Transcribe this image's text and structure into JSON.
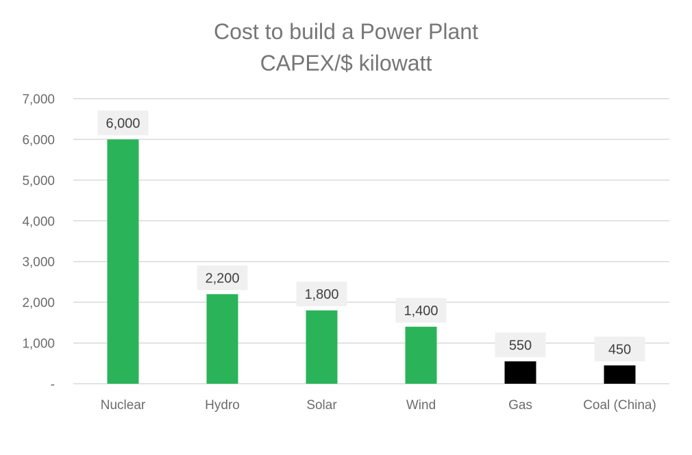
{
  "chart_data": {
    "type": "bar",
    "title": "Cost to build a Power Plant",
    "subtitle": "CAPEX/$ kilowatt",
    "xlabel": "",
    "ylabel": "",
    "categories": [
      "Nuclear",
      "Hydro",
      "Solar",
      "Wind",
      "Gas",
      "Coal (China)"
    ],
    "values": [
      6000,
      2200,
      1800,
      1400,
      550,
      450
    ],
    "data_labels": [
      "6,000",
      "2,200",
      "1,800",
      "1,400",
      "550",
      "450"
    ],
    "bar_colors": [
      "#2bb35a",
      "#2bb35a",
      "#2bb35a",
      "#2bb35a",
      "#000000",
      "#000000"
    ],
    "ylim": [
      0,
      7000
    ],
    "yticks": [
      0,
      1000,
      2000,
      3000,
      4000,
      5000,
      6000,
      7000
    ],
    "ytick_labels": [
      "-",
      "1,000",
      "2,000",
      "3,000",
      "4,000",
      "5,000",
      "6,000",
      "7,000"
    ],
    "grid": true,
    "legend": "none",
    "colors": {
      "gridline": "#d9d9d9",
      "label_box": "#f0f0f0"
    }
  }
}
